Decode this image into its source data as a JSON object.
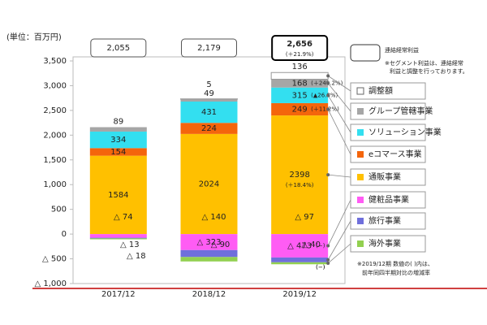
{
  "chart_data": {
    "type": "stacked_bar",
    "unit_label": "(単位：百万円)",
    "categories": [
      "2017/12",
      "2018/12",
      "2019/12"
    ],
    "ylim": [
      -1000,
      3500
    ],
    "yticks": [
      {
        "value": -1000,
        "label": "△ 1,000"
      },
      {
        "value": -500,
        "label": "△ 500"
      },
      0,
      500,
      {
        "value": 1000,
        "label": "1,000"
      },
      {
        "value": 1500,
        "label": "1,500"
      },
      {
        "value": 2000,
        "label": "2,000"
      },
      {
        "value": 2500,
        "label": "2,500"
      },
      {
        "value": 3000,
        "label": "3,000"
      },
      {
        "value": 3500,
        "label": "3,500"
      }
    ],
    "grid": false,
    "totals": [
      {
        "value": 2055,
        "label": "2,055"
      },
      {
        "value": 2179,
        "label": "2,179"
      },
      {
        "value": 2656,
        "label": "2,656"
      }
    ],
    "total_change": "(＋21.9%)",
    "total_legend": "連結経常利益",
    "total_note": [
      "※セグメント利益は、連結経常",
      "利益と調整を行っております。"
    ],
    "footnote": [
      "※2019/12期 数値の( )内は、",
      "前年同四半期対比の増減率"
    ],
    "series": [
      {
        "name": "調整額",
        "color": "#ffffff",
        "values": [
          null,
          5,
          136
        ]
      },
      {
        "name": "グループ管轄事業",
        "color": "#a6a6a6",
        "values": [
          89,
          49,
          168
        ],
        "change": "(＋240.2%)"
      },
      {
        "name": "ソリューション事業",
        "color": "#33dff0",
        "values": [
          334,
          431,
          315
        ],
        "change": "(▲26.8%)"
      },
      {
        "name": "eコマース事業",
        "color": "#f4650c",
        "values": [
          154,
          224,
          249
        ],
        "change": "(＋11.2%)"
      },
      {
        "name": "通販事業",
        "color": "#ffc000",
        "values": [
          1584,
          2024,
          2398
        ],
        "change": "(＋18.4%)"
      },
      {
        "name": "健粧品事業",
        "color": "#ff5cf4",
        "values": [
          -74,
          -323,
          -473
        ],
        "value_labels": [
          "△ 74",
          "△ 323",
          "△ 473"
        ],
        "change": "(−)"
      },
      {
        "name": "旅行事業",
        "color": "#6f6fdc",
        "values": [
          -13,
          -140,
          -97
        ],
        "value_labels": [
          "△ 13",
          "△ 140",
          "△ 97"
        ],
        "change": "(−)"
      },
      {
        "name": "海外事業",
        "color": "#92d050",
        "values": [
          -18,
          -90,
          -40
        ],
        "value_labels": [
          "△ 18",
          "△ 90",
          "△ 40"
        ],
        "change": "(−)"
      }
    ]
  }
}
